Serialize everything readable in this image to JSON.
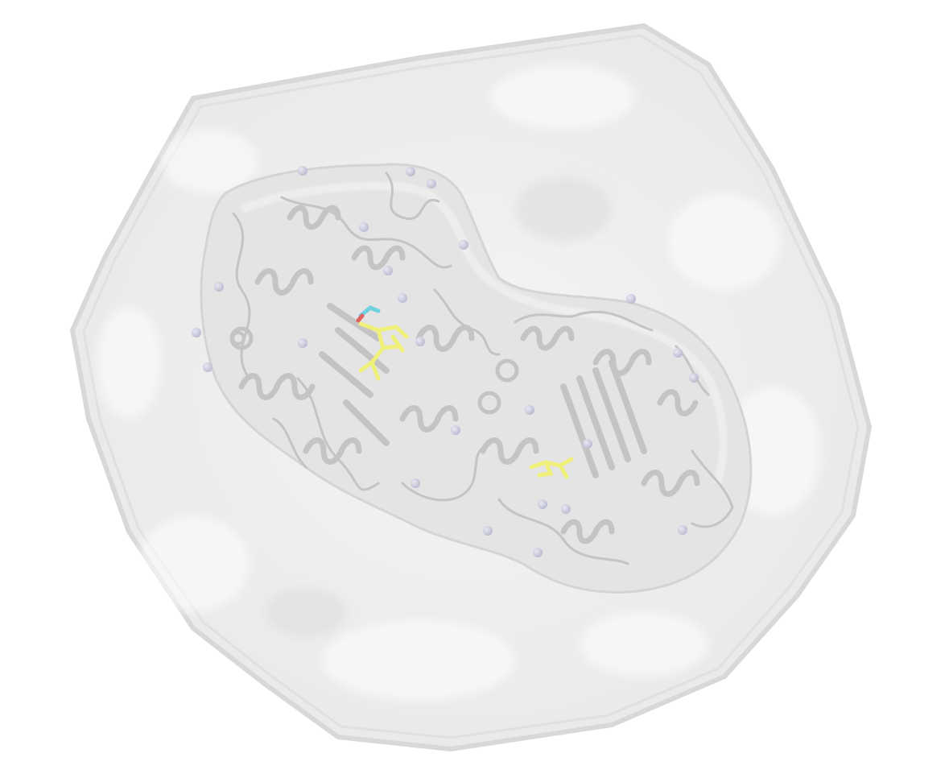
{
  "scene": {
    "subject": "molecular-render",
    "colors": {
      "background": "#ffffff",
      "solvent_box": "#ececec",
      "protein_surface": "#e2e2e2",
      "ribbon": "#c6c6c6",
      "ion": "#c9c9dc",
      "ligand": "#eef07a",
      "ligand_accent_cyan": "#6fd0e0",
      "ligand_accent_red": "#e06262"
    },
    "counts": {
      "ions": 26,
      "ligands": 2
    }
  }
}
